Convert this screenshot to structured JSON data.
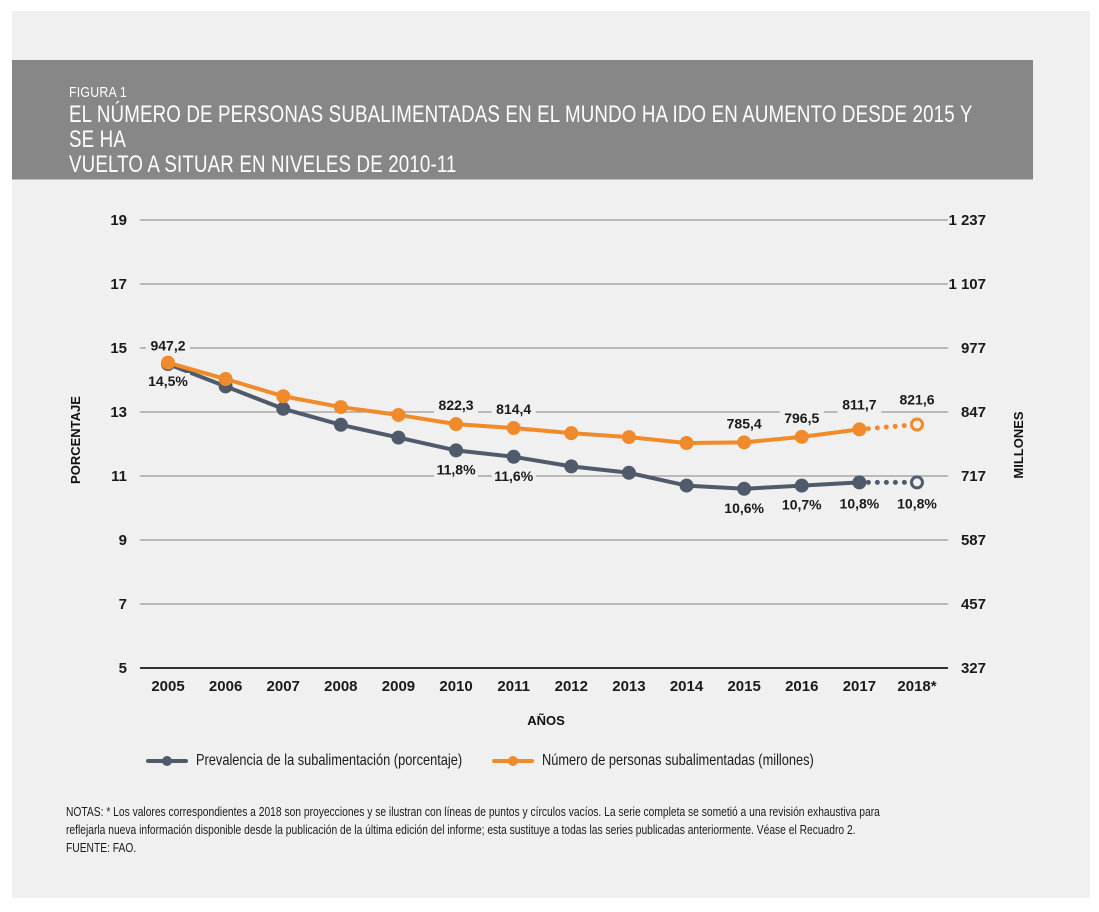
{
  "figure": {
    "number": "FIGURA 1",
    "title_line1": "EL NÚMERO DE PERSONAS SUBALIMENTADAS EN EL MUNDO HA IDO EN AUMENTO DESDE 2015 Y SE HA",
    "title_line2": "VUELTO A SITUAR EN NIVELES DE 2010-11"
  },
  "colors": {
    "prevalence": "#4f5b6b",
    "number": "#f08a2a",
    "banner": "#878787",
    "panel": "#f0f0f0"
  },
  "chart_data": {
    "type": "line",
    "title": "EL NÚMERO DE PERSONAS SUBALIMENTADAS EN EL MUNDO HA IDO EN AUMENTO DESDE 2015 Y SE HA VUELTO A SITUAR EN NIVELES DE 2010-11",
    "xlabel": "AÑOS",
    "ylabel": "PORCENTAJE",
    "ylabel_right": "MILLONES",
    "categories": [
      "2005",
      "2006",
      "2007",
      "2008",
      "2009",
      "2010",
      "2011",
      "2012",
      "2013",
      "2014",
      "2015",
      "2016",
      "2017",
      "2018*"
    ],
    "y_left": {
      "range": [
        5,
        19
      ],
      "ticks": [
        "5",
        "7",
        "9",
        "11",
        "13",
        "15",
        "17",
        "19"
      ]
    },
    "y_right": {
      "range": [
        327,
        1237
      ],
      "ticks": [
        "327",
        "457",
        "587",
        "717",
        "847",
        "977",
        "1 107",
        "1 237"
      ]
    },
    "grid": true,
    "legend_position": "bottom",
    "projected_from_index": 12,
    "series": [
      {
        "name": "Prevalencia de la subalimentación (porcentaje)",
        "axis": "left",
        "color_key": "prevalence",
        "values": [
          14.5,
          13.8,
          13.1,
          12.6,
          12.2,
          11.8,
          11.6,
          11.3,
          11.1,
          10.7,
          10.6,
          10.7,
          10.8,
          10.8
        ],
        "labels": [
          "14,5%",
          null,
          null,
          null,
          null,
          "11,8%",
          "11,6%",
          null,
          null,
          null,
          "10,6%",
          "10,7%",
          "10,8%",
          "10,8%"
        ]
      },
      {
        "name": "Número de personas subalimentadas (millones)",
        "axis": "right",
        "color_key": "number",
        "values": [
          947.2,
          914,
          879,
          857,
          841,
          822.3,
          814.4,
          804,
          796,
          784,
          785.4,
          796.5,
          811.7,
          821.6
        ],
        "labels": [
          "947,2",
          null,
          null,
          null,
          null,
          "822,3",
          "814,4",
          null,
          null,
          null,
          "785,4",
          "796,5",
          "811,7",
          "821,6"
        ]
      }
    ]
  },
  "notes": {
    "line1": "NOTAS: * Los valores correspondientes a 2018 son proyecciones y se ilustran con líneas de puntos y círculos vacíos. La serie completa se sometió a una revisión exhaustiva para",
    "line2": "reflejarla nueva información disponible desde la publicación de la última edición del informe; esta sustituye a todas las series publicadas anteriormente. Véase el Recuadro 2.",
    "source": "FUENTE: FAO."
  }
}
